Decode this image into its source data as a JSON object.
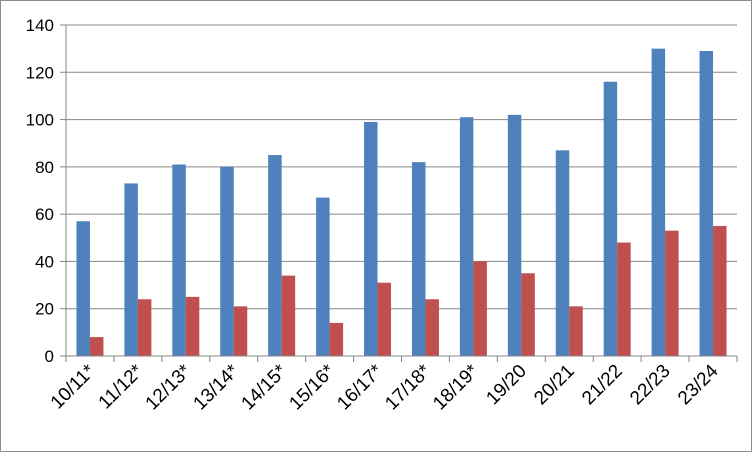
{
  "chart_data": {
    "type": "bar",
    "title": "",
    "xlabel": "",
    "ylabel": "",
    "ylim": [
      0,
      140
    ],
    "yticks": [
      0,
      20,
      40,
      60,
      80,
      100,
      120,
      140
    ],
    "grid": true,
    "legend": "none",
    "categories": [
      "10/11*",
      "11/12*",
      "12/13*",
      "13/14*",
      "14/15*",
      "15/16*",
      "16/17*",
      "17/18*",
      "18/19*",
      "19/20",
      "20/21",
      "21/22",
      "22/23",
      "23/24"
    ],
    "series": [
      {
        "color": "#4f81bd",
        "values": [
          57,
          73,
          81,
          80,
          85,
          67,
          99,
          82,
          101,
          102,
          87,
          116,
          130,
          129
        ]
      },
      {
        "color": "#c0504d",
        "values": [
          8,
          24,
          25,
          21,
          34,
          14,
          31,
          24,
          40,
          35,
          21,
          48,
          53,
          55
        ]
      }
    ]
  }
}
